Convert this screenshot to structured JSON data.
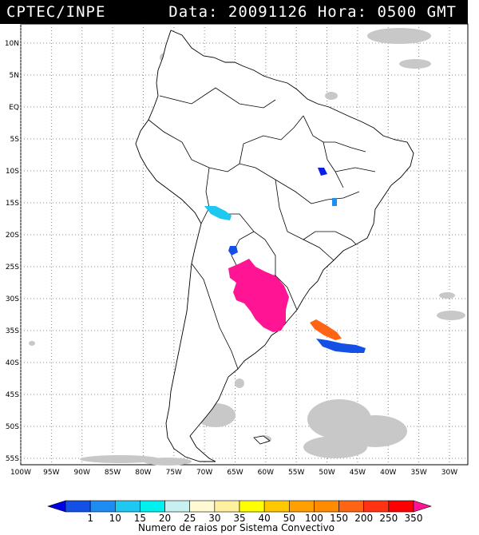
{
  "header": {
    "organization": "CPTEC/INPE",
    "datetime": "Data: 20091126 Hora: 0500 GMT"
  },
  "map": {
    "lon_range": [
      -100,
      -27
    ],
    "lat_range": [
      -56,
      13
    ],
    "lat_ticks": [
      {
        "value": 10,
        "label": "10N"
      },
      {
        "value": 5,
        "label": "5N"
      },
      {
        "value": 0,
        "label": "EQ"
      },
      {
        "value": -5,
        "label": "5S"
      },
      {
        "value": -10,
        "label": "10S"
      },
      {
        "value": -15,
        "label": "15S"
      },
      {
        "value": -20,
        "label": "20S"
      },
      {
        "value": -25,
        "label": "25S"
      },
      {
        "value": -30,
        "label": "30S"
      },
      {
        "value": -35,
        "label": "35S"
      },
      {
        "value": -40,
        "label": "40S"
      },
      {
        "value": -45,
        "label": "45S"
      },
      {
        "value": -50,
        "label": "50S"
      },
      {
        "value": -55,
        "label": "55S"
      }
    ],
    "lon_ticks": [
      {
        "value": -100,
        "label": "100W"
      },
      {
        "value": -95,
        "label": "95W"
      },
      {
        "value": -90,
        "label": "90W"
      },
      {
        "value": -85,
        "label": "85W"
      },
      {
        "value": -80,
        "label": "80W"
      },
      {
        "value": -75,
        "label": "75W"
      },
      {
        "value": -70,
        "label": "70W"
      },
      {
        "value": -65,
        "label": "65W"
      },
      {
        "value": -60,
        "label": "60W"
      },
      {
        "value": -55,
        "label": "55W"
      },
      {
        "value": -50,
        "label": "50W"
      },
      {
        "value": -45,
        "label": "45W"
      },
      {
        "value": -40,
        "label": "40W"
      },
      {
        "value": -35,
        "label": "35W"
      },
      {
        "value": -30,
        "label": "30W"
      }
    ],
    "grid": "dotted",
    "convective_systems": [
      {
        "name": "southern-brazil-argentina",
        "lon": -59,
        "lat": -30,
        "color": "#ff1493",
        "level": 350
      },
      {
        "name": "bolivia",
        "lon": -66,
        "lat": -16.5,
        "color": "#1ec8f0",
        "level": 20
      },
      {
        "name": "paraguay-north",
        "lon": -64.5,
        "lat": -22.5,
        "color": "#1450e6",
        "level": 10
      },
      {
        "name": "bahia",
        "lon": -49.5,
        "lat": -10.2,
        "color": "#0a1ee6",
        "level": 1
      },
      {
        "name": "minas",
        "lon": -48,
        "lat": -14.8,
        "color": "#2090f0",
        "level": 15
      },
      {
        "name": "atlantic-orange",
        "lon": -48.5,
        "lat": -34.5,
        "color": "#ff6414",
        "level": 200
      },
      {
        "name": "atlantic-blue",
        "lon": -45,
        "lat": -37,
        "color": "#1450e6",
        "level": 10
      }
    ]
  },
  "colorbar": {
    "title": "Numero de raios por Sistema Convectivo",
    "labels": [
      "1",
      "10",
      "15",
      "20",
      "25",
      "30",
      "35",
      "40",
      "50",
      "100",
      "150",
      "200",
      "250",
      "350"
    ],
    "colors": [
      "#0000e6",
      "#1450e6",
      "#1e8cf0",
      "#1ec8f0",
      "#00f0f0",
      "#c8f0f0",
      "#fffad2",
      "#fff0a0",
      "#ffff00",
      "#ffc800",
      "#ffa000",
      "#ff8c00",
      "#ff6414",
      "#ff3214",
      "#ff0000",
      "#ff1493"
    ]
  }
}
